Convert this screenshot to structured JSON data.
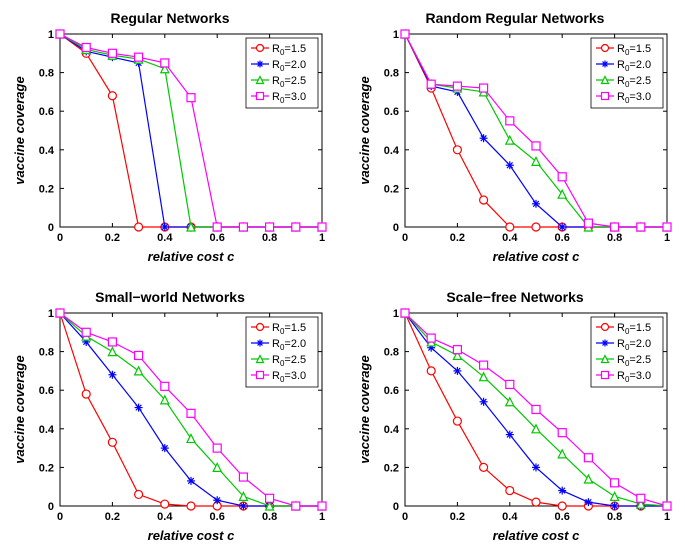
{
  "charts": [
    {
      "title": "Regular Networks",
      "xlabel": "relative cost c",
      "ylabel": "vaccine coverage",
      "xlim": [
        0,
        1
      ],
      "ylim": [
        0,
        1
      ],
      "xticks": [
        0,
        0.2,
        0.4,
        0.6,
        0.8,
        1
      ],
      "yticks": [
        0,
        0.2,
        0.4,
        0.6,
        0.8,
        1
      ],
      "series": [
        {
          "label": "R₀=1.5",
          "color": "#ff0000",
          "marker": "circle",
          "x": [
            0,
            0.1,
            0.2,
            0.3,
            0.4,
            0.5,
            0.6,
            0.7,
            0.8,
            0.9,
            1.0
          ],
          "y": [
            1.0,
            0.9,
            0.68,
            0.0,
            0.0,
            0.0,
            0.0,
            0.0,
            0.0,
            0.0,
            0.0
          ]
        },
        {
          "label": "R₀=2.0",
          "color": "#0000ff",
          "marker": "star",
          "x": [
            0,
            0.1,
            0.2,
            0.3,
            0.4,
            0.5,
            0.6,
            0.7,
            0.8,
            0.9,
            1.0
          ],
          "y": [
            1.0,
            0.91,
            0.88,
            0.85,
            0.0,
            0.0,
            0.0,
            0.0,
            0.0,
            0.0,
            0.0
          ]
        },
        {
          "label": "R₀=2.5",
          "color": "#00c800",
          "marker": "triangle",
          "x": [
            0,
            0.1,
            0.2,
            0.3,
            0.4,
            0.5,
            0.6,
            0.7,
            0.8,
            0.9,
            1.0
          ],
          "y": [
            1.0,
            0.92,
            0.89,
            0.87,
            0.82,
            0.0,
            0.0,
            0.0,
            0.0,
            0.0,
            0.0
          ]
        },
        {
          "label": "R₀=3.0",
          "color": "#ff00ff",
          "marker": "square",
          "x": [
            0,
            0.1,
            0.2,
            0.3,
            0.4,
            0.5,
            0.6,
            0.7,
            0.8,
            0.9,
            1.0
          ],
          "y": [
            1.0,
            0.93,
            0.9,
            0.88,
            0.85,
            0.67,
            0.0,
            0.0,
            0.0,
            0.0,
            0.0
          ]
        }
      ]
    },
    {
      "title": "Random Regular Networks",
      "xlabel": "relative cost c",
      "ylabel": "vaccine coverage",
      "xlim": [
        0,
        1
      ],
      "ylim": [
        0,
        1
      ],
      "xticks": [
        0,
        0.2,
        0.4,
        0.6,
        0.8,
        1
      ],
      "yticks": [
        0,
        0.2,
        0.4,
        0.6,
        0.8,
        1
      ],
      "series": [
        {
          "label": "R₀=1.5",
          "color": "#ff0000",
          "marker": "circle",
          "x": [
            0,
            0.1,
            0.2,
            0.3,
            0.4,
            0.5,
            0.6,
            0.7,
            0.8,
            0.9,
            1.0
          ],
          "y": [
            1.0,
            0.72,
            0.4,
            0.14,
            0.0,
            0.0,
            0.0,
            0.0,
            0.0,
            0.0,
            0.0
          ]
        },
        {
          "label": "R₀=2.0",
          "color": "#0000ff",
          "marker": "star",
          "x": [
            0,
            0.1,
            0.2,
            0.3,
            0.4,
            0.5,
            0.6,
            0.7,
            0.8,
            0.9,
            1.0
          ],
          "y": [
            1.0,
            0.73,
            0.7,
            0.46,
            0.32,
            0.12,
            0.0,
            0.0,
            0.0,
            0.0,
            0.0
          ]
        },
        {
          "label": "R₀=2.5",
          "color": "#00c800",
          "marker": "triangle",
          "x": [
            0,
            0.1,
            0.2,
            0.3,
            0.4,
            0.5,
            0.6,
            0.7,
            0.8,
            0.9,
            1.0
          ],
          "y": [
            1.0,
            0.74,
            0.72,
            0.7,
            0.45,
            0.34,
            0.17,
            0.0,
            0.0,
            0.0,
            0.0
          ]
        },
        {
          "label": "R₀=3.0",
          "color": "#ff00ff",
          "marker": "square",
          "x": [
            0,
            0.1,
            0.2,
            0.3,
            0.4,
            0.5,
            0.6,
            0.7,
            0.8,
            0.9,
            1.0
          ],
          "y": [
            1.0,
            0.74,
            0.73,
            0.72,
            0.55,
            0.42,
            0.26,
            0.02,
            0.0,
            0.0,
            0.0
          ]
        }
      ]
    },
    {
      "title": "Small−world Networks",
      "xlabel": "relative cost c",
      "ylabel": "vaccine coverage",
      "xlim": [
        0,
        1
      ],
      "ylim": [
        0,
        1
      ],
      "xticks": [
        0,
        0.2,
        0.4,
        0.6,
        0.8,
        1
      ],
      "yticks": [
        0,
        0.2,
        0.4,
        0.6,
        0.8,
        1
      ],
      "series": [
        {
          "label": "R₀=1.5",
          "color": "#ff0000",
          "marker": "circle",
          "x": [
            0,
            0.1,
            0.2,
            0.3,
            0.4,
            0.5,
            0.6,
            0.7,
            0.8,
            0.9,
            1.0
          ],
          "y": [
            1.0,
            0.58,
            0.33,
            0.06,
            0.01,
            0.0,
            0.0,
            0.0,
            0.0,
            0.0,
            0.0
          ]
        },
        {
          "label": "R₀=2.0",
          "color": "#0000ff",
          "marker": "star",
          "x": [
            0,
            0.1,
            0.2,
            0.3,
            0.4,
            0.5,
            0.6,
            0.7,
            0.8,
            0.9,
            1.0
          ],
          "y": [
            1.0,
            0.85,
            0.68,
            0.51,
            0.3,
            0.13,
            0.03,
            0.0,
            0.0,
            0.0,
            0.0
          ]
        },
        {
          "label": "R₀=2.5",
          "color": "#00c800",
          "marker": "triangle",
          "x": [
            0,
            0.1,
            0.2,
            0.3,
            0.4,
            0.5,
            0.6,
            0.7,
            0.8,
            0.9,
            1.0
          ],
          "y": [
            1.0,
            0.88,
            0.8,
            0.7,
            0.55,
            0.35,
            0.2,
            0.05,
            0.0,
            0.0,
            0.0
          ]
        },
        {
          "label": "R₀=3.0",
          "color": "#ff00ff",
          "marker": "square",
          "x": [
            0,
            0.1,
            0.2,
            0.3,
            0.4,
            0.5,
            0.6,
            0.7,
            0.8,
            0.9,
            1.0
          ],
          "y": [
            1.0,
            0.9,
            0.85,
            0.78,
            0.62,
            0.48,
            0.3,
            0.15,
            0.04,
            0.0,
            0.0
          ]
        }
      ]
    },
    {
      "title": "Scale−free Networks",
      "xlabel": "relative cost c",
      "ylabel": "vaccine coverage",
      "xlim": [
        0,
        1
      ],
      "ylim": [
        0,
        1
      ],
      "xticks": [
        0,
        0.2,
        0.4,
        0.6,
        0.8,
        1
      ],
      "yticks": [
        0,
        0.2,
        0.4,
        0.6,
        0.8,
        1
      ],
      "series": [
        {
          "label": "R₀=1.5",
          "color": "#ff0000",
          "marker": "circle",
          "x": [
            0,
            0.1,
            0.2,
            0.3,
            0.4,
            0.5,
            0.6,
            0.7,
            0.8,
            0.9,
            1.0
          ],
          "y": [
            1.0,
            0.7,
            0.44,
            0.2,
            0.08,
            0.02,
            0.0,
            0.0,
            0.0,
            0.0,
            0.0
          ]
        },
        {
          "label": "R₀=2.0",
          "color": "#0000ff",
          "marker": "star",
          "x": [
            0,
            0.1,
            0.2,
            0.3,
            0.4,
            0.5,
            0.6,
            0.7,
            0.8,
            0.9,
            1.0
          ],
          "y": [
            1.0,
            0.82,
            0.7,
            0.54,
            0.37,
            0.2,
            0.08,
            0.02,
            0.0,
            0.0,
            0.0
          ]
        },
        {
          "label": "R₀=2.5",
          "color": "#00c800",
          "marker": "triangle",
          "x": [
            0,
            0.1,
            0.2,
            0.3,
            0.4,
            0.5,
            0.6,
            0.7,
            0.8,
            0.9,
            1.0
          ],
          "y": [
            1.0,
            0.85,
            0.78,
            0.67,
            0.54,
            0.4,
            0.27,
            0.14,
            0.05,
            0.01,
            0.0
          ]
        },
        {
          "label": "R₀=3.0",
          "color": "#ff00ff",
          "marker": "square",
          "x": [
            0,
            0.1,
            0.2,
            0.3,
            0.4,
            0.5,
            0.6,
            0.7,
            0.8,
            0.9,
            1.0
          ],
          "y": [
            1.0,
            0.87,
            0.81,
            0.73,
            0.63,
            0.5,
            0.38,
            0.25,
            0.12,
            0.04,
            0.0
          ]
        }
      ]
    }
  ],
  "plot_style": {
    "background": "#ffffff",
    "axis_color": "#000000",
    "marker_size": 4,
    "line_width": 1.2,
    "title_fontsize": 14,
    "label_fontsize": 13,
    "tick_fontsize": 11,
    "legend_fontsize": 11
  }
}
